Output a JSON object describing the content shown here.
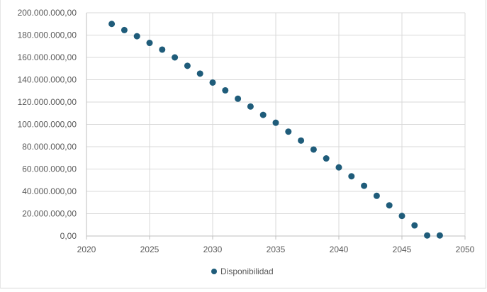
{
  "chart_data": {
    "type": "scatter",
    "title": "",
    "xlabel": "",
    "ylabel": "",
    "xlim": [
      2020,
      2050
    ],
    "ylim": [
      0,
      200000000
    ],
    "x_ticks": [
      2020,
      2025,
      2030,
      2035,
      2040,
      2045,
      2050
    ],
    "x_tick_labels": [
      "2020",
      "2025",
      "2030",
      "2035",
      "2040",
      "2045",
      "2050"
    ],
    "y_ticks": [
      0,
      20000000,
      40000000,
      60000000,
      80000000,
      100000000,
      120000000,
      140000000,
      160000000,
      180000000,
      200000000
    ],
    "y_tick_labels": [
      "0,00",
      "20.000.000,00",
      "40.000.000,00",
      "60.000.000,00",
      "80.000.000,00",
      "100.000.000,00",
      "120.000.000,00",
      "140.000.000,00",
      "160.000.000,00",
      "180.000.000,00",
      "200.000.000,00"
    ],
    "grid": true,
    "legend_position": "bottom",
    "series": [
      {
        "name": "Disponibilidad",
        "color": "#1f5c7a",
        "x": [
          2022,
          2023,
          2024,
          2025,
          2026,
          2027,
          2028,
          2029,
          2030,
          2031,
          2032,
          2033,
          2034,
          2035,
          2036,
          2037,
          2038,
          2039,
          2040,
          2041,
          2042,
          2043,
          2044,
          2045,
          2046,
          2047,
          2048
        ],
        "y": [
          190000000,
          184500000,
          179000000,
          173000000,
          167000000,
          160000000,
          152500000,
          145500000,
          137500000,
          130500000,
          123000000,
          116000000,
          108500000,
          101500000,
          93500000,
          85500000,
          77500000,
          69500000,
          61500000,
          53500000,
          45000000,
          36000000,
          27500000,
          18000000,
          9500000,
          500000,
          500000
        ]
      }
    ]
  }
}
